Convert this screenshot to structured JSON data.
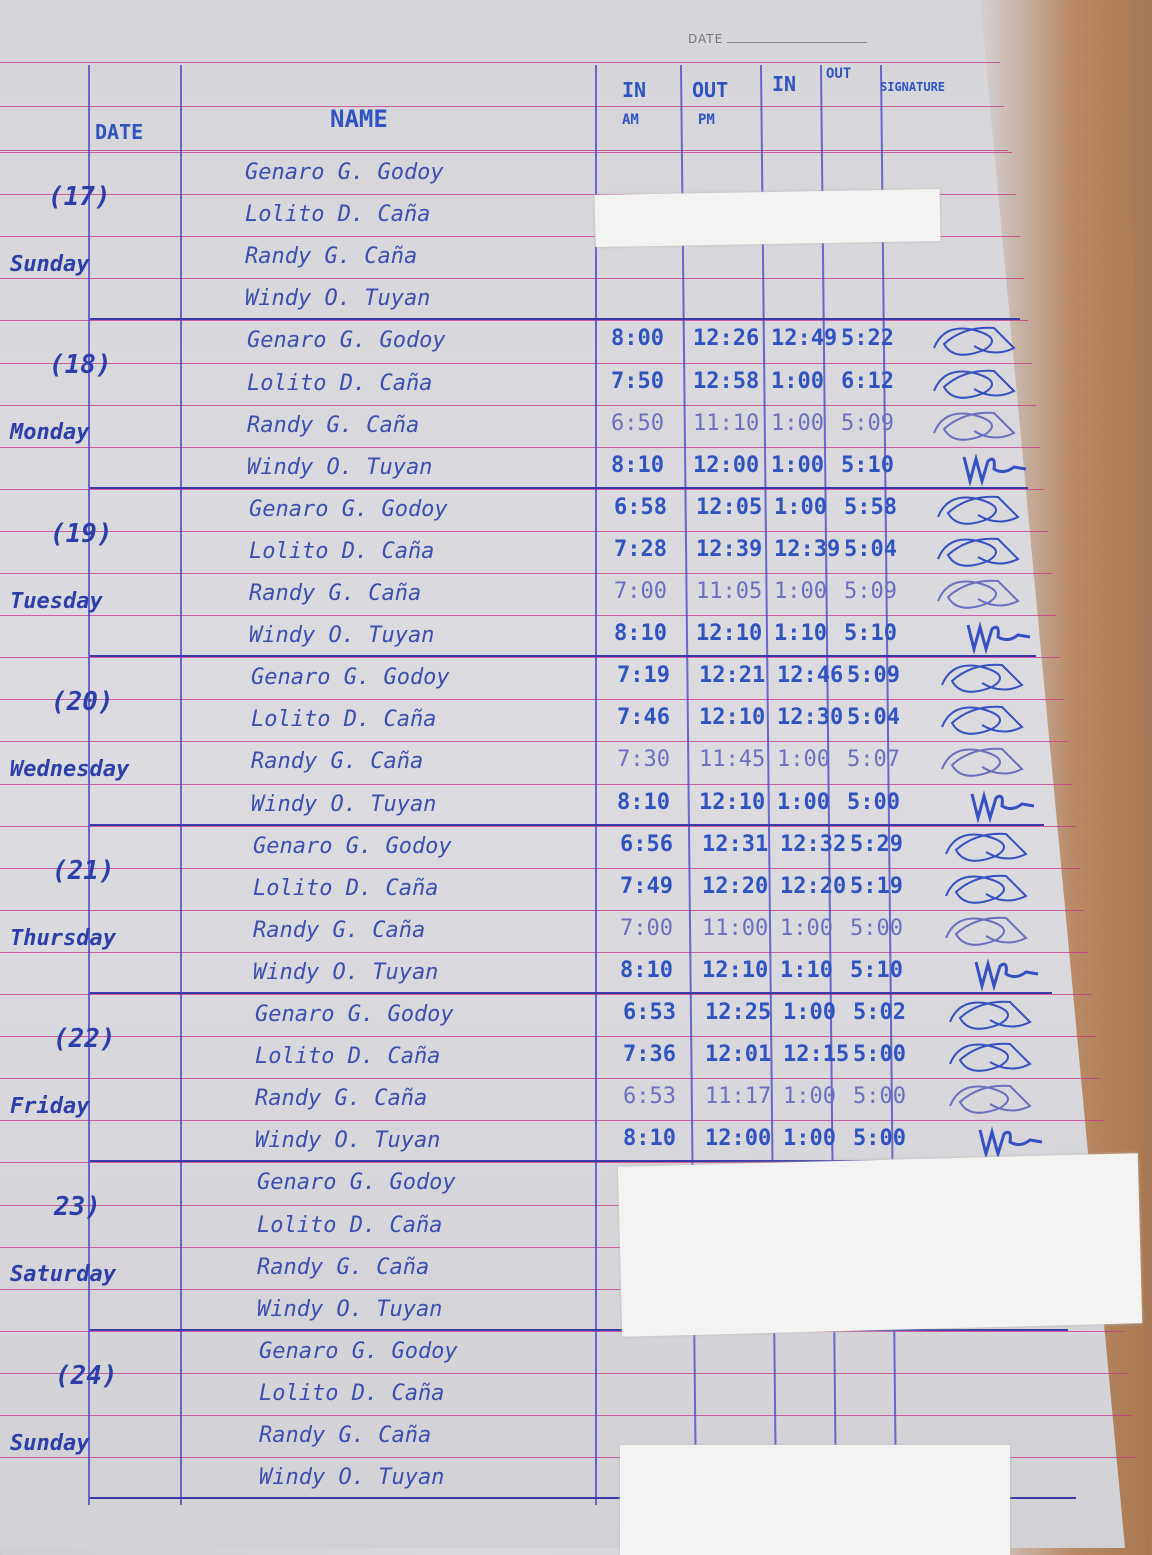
{
  "header": {
    "date_label": "DATE",
    "columns": {
      "date": "DATE",
      "name": "NAME",
      "in_am": "IN",
      "out_am": "OUT",
      "in_pm": "IN",
      "out_pm": "OUT",
      "signature": "SIGNATURE"
    },
    "subheaders": {
      "am": "AM",
      "pm": "PM"
    }
  },
  "days": [
    {
      "number": "(17)",
      "weekday": "Sunday",
      "entries": [
        {
          "name": "Genaro G. Godoy",
          "times": [
            "",
            "",
            "",
            ""
          ]
        },
        {
          "name": "Lolito D. Caña",
          "times": [
            "",
            "",
            "",
            ""
          ]
        },
        {
          "name": "Randy G. Caña",
          "times": [
            "",
            "",
            "",
            ""
          ]
        },
        {
          "name": "Windy O. Tuyan",
          "times": [
            "",
            "",
            "",
            ""
          ]
        }
      ]
    },
    {
      "number": "(18)",
      "weekday": "Monday",
      "entries": [
        {
          "name": "Genaro G. Godoy",
          "times": [
            "8:00",
            "12:26",
            "12:49",
            "5:22"
          ]
        },
        {
          "name": "Lolito D. Caña",
          "times": [
            "7:50",
            "12:58",
            "1:00",
            "6:12"
          ]
        },
        {
          "name": "Randy G. Caña",
          "times": [
            "6:50",
            "11:10",
            "1:00",
            "5:09"
          ]
        },
        {
          "name": "Windy O. Tuyan",
          "times": [
            "8:10",
            "12:00",
            "1:00",
            "5:10"
          ]
        }
      ]
    },
    {
      "number": "(19)",
      "weekday": "Tuesday",
      "entries": [
        {
          "name": "Genaro G. Godoy",
          "times": [
            "6:58",
            "12:05",
            "1:00",
            "5:58"
          ]
        },
        {
          "name": "Lolito D. Caña",
          "times": [
            "7:28",
            "12:39",
            "12:39",
            "5:04"
          ]
        },
        {
          "name": "Randy G. Caña",
          "times": [
            "7:00",
            "11:05",
            "1:00",
            "5:09"
          ]
        },
        {
          "name": "Windy O. Tuyan",
          "times": [
            "8:10",
            "12:10",
            "1:10",
            "5:10"
          ]
        }
      ]
    },
    {
      "number": "(20)",
      "weekday": "Wednesday",
      "entries": [
        {
          "name": "Genaro G. Godoy",
          "times": [
            "7:19",
            "12:21",
            "12:46",
            "5:09"
          ]
        },
        {
          "name": "Lolito D. Caña",
          "times": [
            "7:46",
            "12:10",
            "12:30",
            "5:04"
          ]
        },
        {
          "name": "Randy G. Caña",
          "times": [
            "7:30",
            "11:45",
            "1:00",
            "5:07"
          ]
        },
        {
          "name": "Windy O. Tuyan",
          "times": [
            "8:10",
            "12:10",
            "1:00",
            "5:00"
          ]
        }
      ]
    },
    {
      "number": "(21)",
      "weekday": "Thursday",
      "entries": [
        {
          "name": "Genaro G. Godoy",
          "times": [
            "6:56",
            "12:31",
            "12:32",
            "5:29"
          ]
        },
        {
          "name": "Lolito D. Caña",
          "times": [
            "7:49",
            "12:20",
            "12:20",
            "5:19"
          ]
        },
        {
          "name": "Randy G. Caña",
          "times": [
            "7:00",
            "11:00",
            "1:00",
            "5:00"
          ]
        },
        {
          "name": "Windy O. Tuyan",
          "times": [
            "8:10",
            "12:10",
            "1:10",
            "5:10"
          ]
        }
      ]
    },
    {
      "number": "(22)",
      "weekday": "Friday",
      "entries": [
        {
          "name": "Genaro G. Godoy",
          "times": [
            "6:53",
            "12:25",
            "1:00",
            "5:02"
          ]
        },
        {
          "name": "Lolito D. Caña",
          "times": [
            "7:36",
            "12:01",
            "12:15",
            "5:00"
          ]
        },
        {
          "name": "Randy G. Caña",
          "times": [
            "6:53",
            "11:17",
            "1:00",
            "5:00"
          ]
        },
        {
          "name": "Windy O. Tuyan",
          "times": [
            "8:10",
            "12:00",
            "1:00",
            "5:00"
          ]
        }
      ]
    },
    {
      "number": "23)",
      "weekday": "Saturday",
      "entries": [
        {
          "name": "Genaro G. Godoy",
          "times": [
            "",
            "",
            "",
            ""
          ]
        },
        {
          "name": "Lolito D. Caña",
          "times": [
            "",
            "",
            "",
            ""
          ]
        },
        {
          "name": "Randy G. Caña",
          "times": [
            "",
            "",
            "",
            ""
          ]
        },
        {
          "name": "Windy O. Tuyan",
          "times": [
            "",
            "",
            "",
            ""
          ]
        }
      ]
    },
    {
      "number": "(24)",
      "weekday": "Sunday",
      "entries": [
        {
          "name": "Genaro G. Godoy",
          "times": [
            "",
            "",
            "",
            ""
          ]
        },
        {
          "name": "Lolito D. Caña",
          "times": [
            "",
            "",
            "",
            ""
          ]
        },
        {
          "name": "Randy G. Caña",
          "times": [
            "",
            "",
            "",
            ""
          ]
        },
        {
          "name": "Windy O. Tuyan",
          "times": [
            "",
            "",
            "",
            ""
          ]
        }
      ]
    }
  ],
  "colors": {
    "ink": "#2f54c0",
    "rule_line": "#c4378a",
    "column_line": "#4a4ac8",
    "paper": "#d8d7db"
  }
}
